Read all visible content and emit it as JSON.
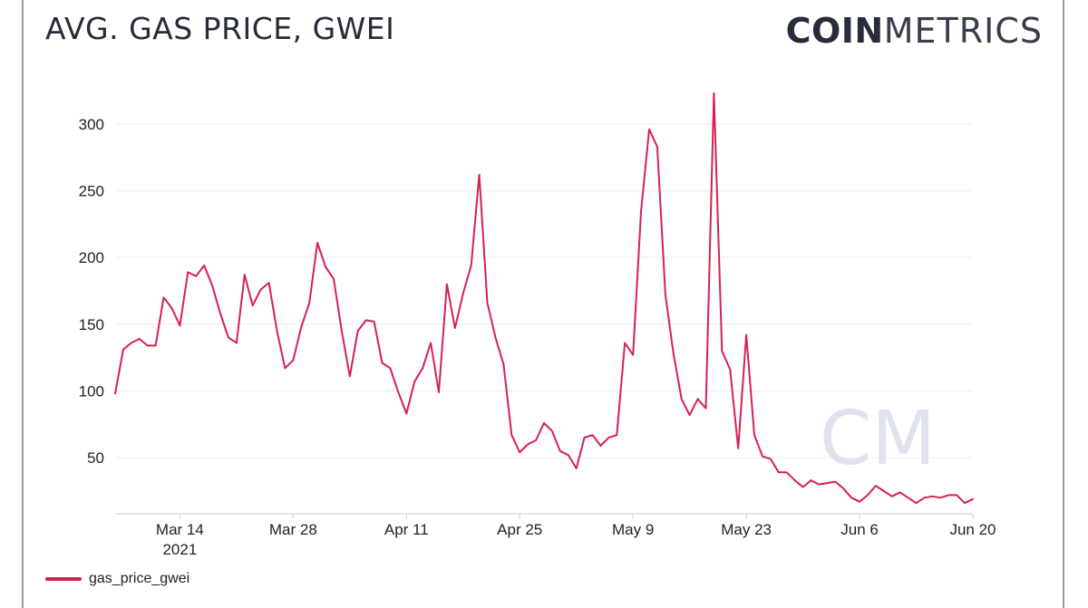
{
  "header": {
    "title": "AVG. GAS PRICE, GWEI",
    "brand_bold": "COIN",
    "brand_light": "METRICS",
    "watermark": "CM"
  },
  "colors": {
    "line": "#d6214f",
    "text": "#272b3a",
    "grid": "#ececec",
    "watermark": "#dfe2ee"
  },
  "chart_data": {
    "type": "line",
    "title": "AVG. GAS PRICE, GWEI",
    "xlabel": "",
    "ylabel": "",
    "grid": true,
    "legend_position": "bottom-left",
    "x_range": [
      "2021-03-06",
      "2021-06-20"
    ],
    "y_range": [
      8,
      325
    ],
    "y_ticks": [
      50,
      100,
      150,
      200,
      250,
      300
    ],
    "x_ticks": [
      {
        "date": "2021-03-14",
        "label": "Mar 14",
        "sublabel": "2021"
      },
      {
        "date": "2021-03-28",
        "label": "Mar 28",
        "sublabel": ""
      },
      {
        "date": "2021-04-11",
        "label": "Apr 11",
        "sublabel": ""
      },
      {
        "date": "2021-04-25",
        "label": "Apr 25",
        "sublabel": ""
      },
      {
        "date": "2021-05-09",
        "label": "May 9",
        "sublabel": ""
      },
      {
        "date": "2021-05-23",
        "label": "May 23",
        "sublabel": ""
      },
      {
        "date": "2021-06-06",
        "label": "Jun 6",
        "sublabel": ""
      },
      {
        "date": "2021-06-20",
        "label": "Jun 20",
        "sublabel": ""
      }
    ],
    "series": [
      {
        "name": "gas_price_gwei",
        "points": [
          [
            "2021-03-06",
            98
          ],
          [
            "2021-03-07",
            131
          ],
          [
            "2021-03-08",
            136
          ],
          [
            "2021-03-09",
            139
          ],
          [
            "2021-03-10",
            134
          ],
          [
            "2021-03-11",
            134
          ],
          [
            "2021-03-12",
            170
          ],
          [
            "2021-03-13",
            162
          ],
          [
            "2021-03-14",
            149
          ],
          [
            "2021-03-15",
            189
          ],
          [
            "2021-03-16",
            186
          ],
          [
            "2021-03-17",
            194
          ],
          [
            "2021-03-18",
            179
          ],
          [
            "2021-03-19",
            158
          ],
          [
            "2021-03-20",
            140
          ],
          [
            "2021-03-21",
            136
          ],
          [
            "2021-03-22",
            187
          ],
          [
            "2021-03-23",
            164
          ],
          [
            "2021-03-24",
            176
          ],
          [
            "2021-03-25",
            181
          ],
          [
            "2021-03-26",
            145
          ],
          [
            "2021-03-27",
            117
          ],
          [
            "2021-03-28",
            123
          ],
          [
            "2021-03-29",
            148
          ],
          [
            "2021-03-30",
            166
          ],
          [
            "2021-03-31",
            211
          ],
          [
            "2021-04-01",
            193
          ],
          [
            "2021-04-02",
            184
          ],
          [
            "2021-04-03",
            145
          ],
          [
            "2021-04-04",
            111
          ],
          [
            "2021-04-05",
            145
          ],
          [
            "2021-04-06",
            153
          ],
          [
            "2021-04-07",
            152
          ],
          [
            "2021-04-08",
            121
          ],
          [
            "2021-04-09",
            117
          ],
          [
            "2021-04-10",
            99
          ],
          [
            "2021-04-11",
            83
          ],
          [
            "2021-04-12",
            107
          ],
          [
            "2021-04-13",
            117
          ],
          [
            "2021-04-14",
            136
          ],
          [
            "2021-04-15",
            99
          ],
          [
            "2021-04-16",
            180
          ],
          [
            "2021-04-17",
            147
          ],
          [
            "2021-04-18",
            173
          ],
          [
            "2021-04-19",
            194
          ],
          [
            "2021-04-20",
            262
          ],
          [
            "2021-04-21",
            166
          ],
          [
            "2021-04-22",
            140
          ],
          [
            "2021-04-23",
            120
          ],
          [
            "2021-04-24",
            67
          ],
          [
            "2021-04-25",
            54
          ],
          [
            "2021-04-26",
            60
          ],
          [
            "2021-04-27",
            63
          ],
          [
            "2021-04-28",
            76
          ],
          [
            "2021-04-29",
            70
          ],
          [
            "2021-04-30",
            55
          ],
          [
            "2021-05-01",
            52
          ],
          [
            "2021-05-02",
            42
          ],
          [
            "2021-05-03",
            65
          ],
          [
            "2021-05-04",
            67
          ],
          [
            "2021-05-05",
            59
          ],
          [
            "2021-05-06",
            65
          ],
          [
            "2021-05-07",
            67
          ],
          [
            "2021-05-08",
            136
          ],
          [
            "2021-05-09",
            127
          ],
          [
            "2021-05-10",
            235
          ],
          [
            "2021-05-11",
            296
          ],
          [
            "2021-05-12",
            283
          ],
          [
            "2021-05-13",
            172
          ],
          [
            "2021-05-14",
            128
          ],
          [
            "2021-05-15",
            94
          ],
          [
            "2021-05-16",
            82
          ],
          [
            "2021-05-17",
            94
          ],
          [
            "2021-05-18",
            87
          ],
          [
            "2021-05-19",
            323
          ],
          [
            "2021-05-20",
            130
          ],
          [
            "2021-05-21",
            116
          ],
          [
            "2021-05-22",
            57
          ],
          [
            "2021-05-23",
            142
          ],
          [
            "2021-05-24",
            67
          ],
          [
            "2021-05-25",
            51
          ],
          [
            "2021-05-26",
            49
          ],
          [
            "2021-05-27",
            39
          ],
          [
            "2021-05-28",
            39
          ],
          [
            "2021-05-29",
            33
          ],
          [
            "2021-05-30",
            28
          ],
          [
            "2021-05-31",
            33
          ],
          [
            "2021-06-01",
            30
          ],
          [
            "2021-06-02",
            31
          ],
          [
            "2021-06-03",
            32
          ],
          [
            "2021-06-04",
            27
          ],
          [
            "2021-06-05",
            20
          ],
          [
            "2021-06-06",
            17
          ],
          [
            "2021-06-07",
            22
          ],
          [
            "2021-06-08",
            29
          ],
          [
            "2021-06-09",
            25
          ],
          [
            "2021-06-10",
            21
          ],
          [
            "2021-06-11",
            24
          ],
          [
            "2021-06-12",
            20
          ],
          [
            "2021-06-13",
            16
          ],
          [
            "2021-06-14",
            20
          ],
          [
            "2021-06-15",
            21
          ],
          [
            "2021-06-16",
            20
          ],
          [
            "2021-06-17",
            22
          ],
          [
            "2021-06-18",
            22
          ],
          [
            "2021-06-19",
            16
          ],
          [
            "2021-06-20",
            19
          ]
        ]
      }
    ]
  }
}
